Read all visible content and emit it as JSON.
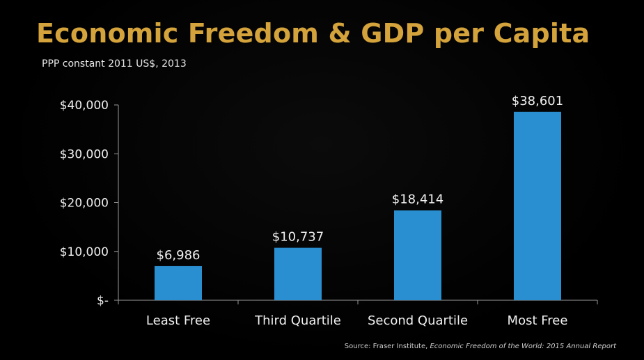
{
  "header": {
    "title": "Economic Freedom & GDP per Capita",
    "subtitle": "PPP constant 2011 US$, 2013"
  },
  "footer": {
    "source_prefix": "Source:  Fraser Institute, ",
    "source_title": "Economic Freedom of the World: 2015 Annual Report"
  },
  "colors": {
    "title": "#d4a33b",
    "bar": "#2a8fd0",
    "axis": "#9a9a9a",
    "text": "#f0f0f0",
    "background": "#000000"
  },
  "chart_data": {
    "type": "bar",
    "title": "Economic Freedom & GDP per Capita",
    "subtitle": "PPP constant 2011 US$, 2013",
    "categories": [
      "Least Free",
      "Third Quartile",
      "Second Quartile",
      "Most Free"
    ],
    "values": [
      6986,
      10737,
      18414,
      38601
    ],
    "data_labels": [
      "$6,986",
      "$10,737",
      "$18,414",
      "$38,601"
    ],
    "ylim": [
      0,
      40000
    ],
    "yticks": [
      0,
      10000,
      20000,
      30000,
      40000
    ],
    "ytick_labels": [
      "$-",
      "$10,000",
      "$20,000",
      "$30,000",
      "$40,000"
    ],
    "xlabel": "",
    "ylabel": "",
    "grid": false,
    "legend": "none"
  }
}
